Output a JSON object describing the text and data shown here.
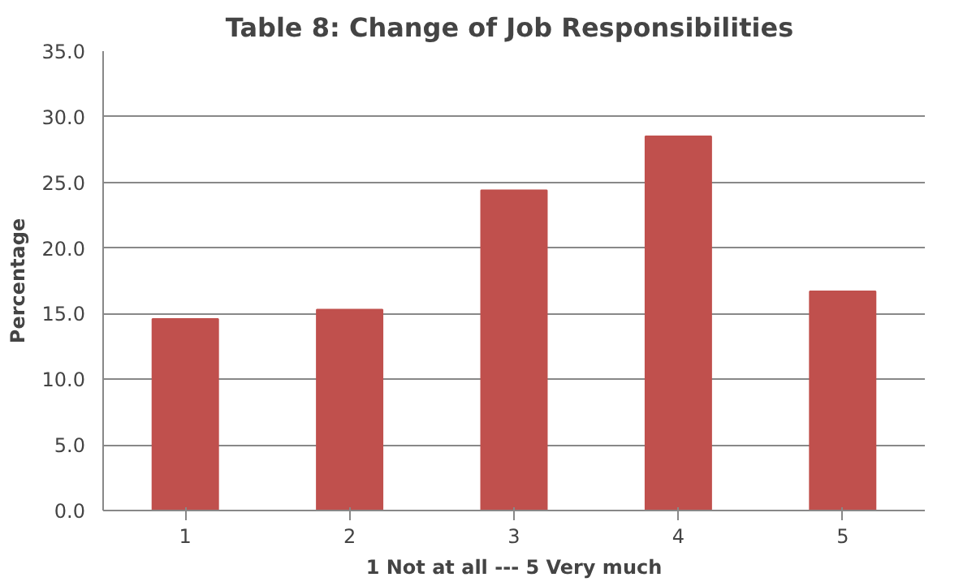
{
  "chart_data": {
    "type": "bar",
    "title": "Table 8: Change of  Job Responsibilities",
    "xlabel": "1 Not at all --- 5 Very much",
    "ylabel": "Percentage",
    "categories": [
      "1",
      "2",
      "3",
      "4",
      "5"
    ],
    "values": [
      14.6,
      15.3,
      24.4,
      28.5,
      16.7
    ],
    "color": "#c0504d",
    "ylim": [
      0,
      35
    ],
    "yticks": [
      {
        "value": 0,
        "label": "0.0"
      },
      {
        "value": 5,
        "label": "5.0"
      },
      {
        "value": 10,
        "label": "10.0"
      },
      {
        "value": 15,
        "label": "15.0"
      },
      {
        "value": 20,
        "label": "20.0"
      },
      {
        "value": 25,
        "label": "25.0"
      },
      {
        "value": 30,
        "label": "30.0"
      },
      {
        "value": 35,
        "label": "35.0"
      }
    ],
    "grid": "y"
  }
}
